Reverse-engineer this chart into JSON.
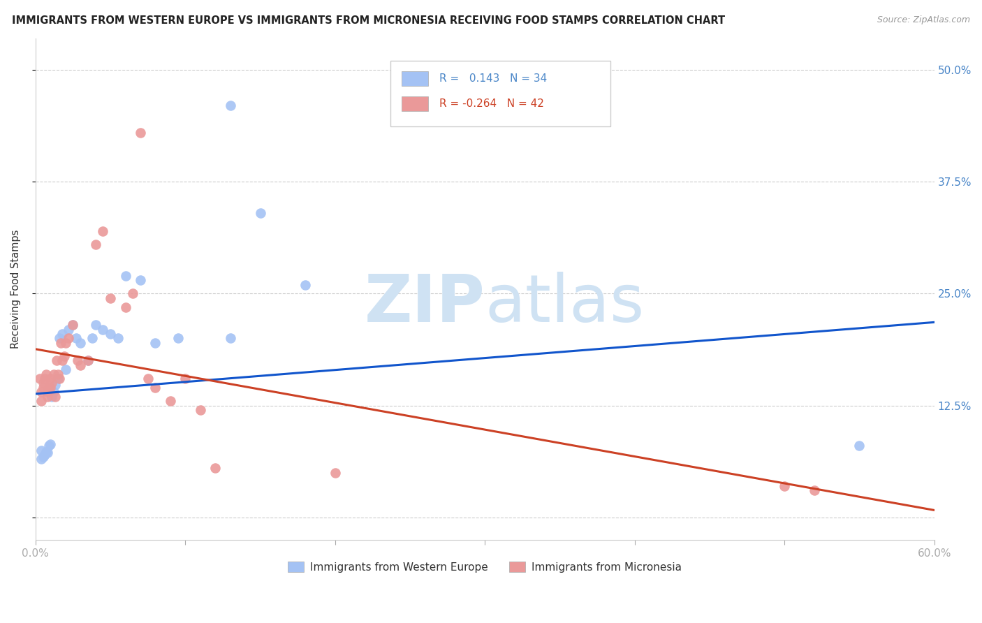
{
  "title": "IMMIGRANTS FROM WESTERN EUROPE VS IMMIGRANTS FROM MICRONESIA RECEIVING FOOD STAMPS CORRELATION CHART",
  "source": "Source: ZipAtlas.com",
  "ylabel": "Receiving Food Stamps",
  "yticks": [
    0.0,
    0.125,
    0.25,
    0.375,
    0.5
  ],
  "ytick_labels": [
    "",
    "12.5%",
    "25.0%",
    "37.5%",
    "50.0%"
  ],
  "xmin": 0.0,
  "xmax": 0.6,
  "ymin": -0.025,
  "ymax": 0.535,
  "blue_color": "#a4c2f4",
  "pink_color": "#ea9999",
  "blue_line_color": "#1155cc",
  "pink_line_color": "#cc4125",
  "watermark_zip_color": "#cfe2f3",
  "watermark_atlas_color": "#cfe2f3",
  "legend_label1": "Immigrants from Western Europe",
  "legend_label2": "Immigrants from Micronesia",
  "blue_x": [
    0.004,
    0.004,
    0.005,
    0.006,
    0.007,
    0.008,
    0.009,
    0.01,
    0.011,
    0.012,
    0.013,
    0.015,
    0.016,
    0.018,
    0.02,
    0.022,
    0.025,
    0.027,
    0.03,
    0.035,
    0.038,
    0.04,
    0.045,
    0.05,
    0.055,
    0.06,
    0.07,
    0.08,
    0.095,
    0.13,
    0.15,
    0.18,
    0.55,
    0.13
  ],
  "blue_y": [
    0.065,
    0.075,
    0.068,
    0.07,
    0.073,
    0.072,
    0.08,
    0.082,
    0.135,
    0.14,
    0.148,
    0.155,
    0.2,
    0.205,
    0.165,
    0.21,
    0.215,
    0.2,
    0.195,
    0.175,
    0.2,
    0.215,
    0.21,
    0.205,
    0.2,
    0.27,
    0.265,
    0.195,
    0.2,
    0.46,
    0.34,
    0.26,
    0.08,
    0.2
  ],
  "pink_x": [
    0.003,
    0.004,
    0.004,
    0.005,
    0.005,
    0.006,
    0.007,
    0.008,
    0.008,
    0.009,
    0.01,
    0.01,
    0.011,
    0.012,
    0.013,
    0.014,
    0.015,
    0.016,
    0.017,
    0.018,
    0.019,
    0.02,
    0.022,
    0.025,
    0.028,
    0.03,
    0.035,
    0.04,
    0.045,
    0.05,
    0.06,
    0.065,
    0.07,
    0.075,
    0.08,
    0.09,
    0.1,
    0.11,
    0.12,
    0.2,
    0.5,
    0.52
  ],
  "pink_y": [
    0.155,
    0.13,
    0.14,
    0.145,
    0.15,
    0.155,
    0.16,
    0.135,
    0.14,
    0.145,
    0.155,
    0.145,
    0.15,
    0.16,
    0.135,
    0.175,
    0.16,
    0.155,
    0.195,
    0.175,
    0.18,
    0.195,
    0.2,
    0.215,
    0.175,
    0.17,
    0.175,
    0.305,
    0.32,
    0.245,
    0.235,
    0.25,
    0.43,
    0.155,
    0.145,
    0.13,
    0.155,
    0.12,
    0.055,
    0.05,
    0.035,
    0.03
  ],
  "blue_trend_x": [
    0.0,
    0.6
  ],
  "blue_trend_y": [
    0.138,
    0.218
  ],
  "pink_trend_x": [
    0.0,
    0.6
  ],
  "pink_trend_y": [
    0.188,
    0.008
  ],
  "title_fontsize": 10.5,
  "source_fontsize": 9,
  "axis_tick_color": "#4a86c8",
  "background_color": "#ffffff",
  "grid_color": "#cccccc"
}
